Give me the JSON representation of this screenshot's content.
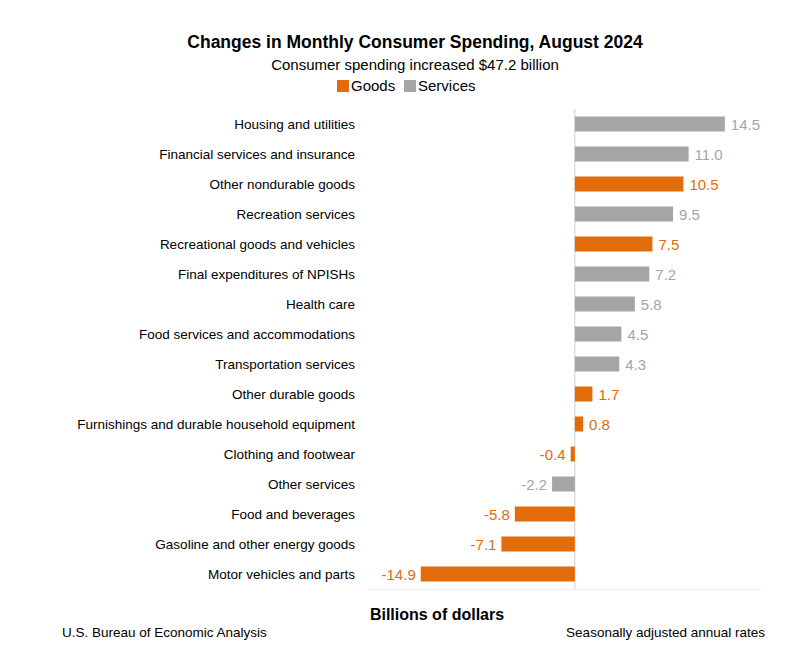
{
  "chart_data": {
    "type": "bar",
    "orientation": "horizontal",
    "title": "Changes in Monthly Consumer Spending, August 2024",
    "subtitle": "Consumer spending increased $47.2 billion",
    "x_label": "Billions of dollars",
    "annotations": [
      "U.S. Bureau of Economic Analysis",
      "Seasonally adjusted annual rates"
    ],
    "categories": [
      "Housing and utilities",
      "Financial services and insurance",
      "Other nondurable goods",
      "Recreation services",
      "Recreational goods and vehicles",
      "Final expenditures of NPISHs",
      "Health care",
      "Food services and accommodations",
      "Transportation services",
      "Other durable goods",
      "Furnishings and durable household equipment",
      "Clothing and footwear",
      "Other services",
      "Food and beverages",
      "Gasoline and other energy goods",
      "Motor vehicles and parts"
    ],
    "series": [
      {
        "name": "Goods",
        "color": "#e36c0a",
        "values": [
          null,
          null,
          10.5,
          null,
          7.5,
          null,
          null,
          null,
          null,
          1.7,
          0.8,
          -0.4,
          null,
          -5.8,
          -7.1,
          -14.9
        ],
        "value_labels": [
          null,
          null,
          "10.5",
          null,
          "7.5",
          null,
          null,
          null,
          null,
          "1.7",
          "0.8",
          "-0.4",
          null,
          "-5.8",
          "-7.1",
          "-14.9"
        ]
      },
      {
        "name": "Services",
        "color": "#a5a5a5",
        "values": [
          14.5,
          11.0,
          null,
          9.5,
          null,
          7.2,
          5.8,
          4.5,
          4.3,
          null,
          null,
          null,
          -2.2,
          null,
          null,
          null
        ],
        "value_labels": [
          "14.5",
          "11.0",
          null,
          "9.5",
          null,
          "7.2",
          "5.8",
          "4.5",
          "4.3",
          null,
          null,
          null,
          "-2.2",
          null,
          null,
          null
        ]
      }
    ],
    "xlim": [
      -20,
      18
    ],
    "xticks": [
      0
    ],
    "tick_labels": false,
    "grid": true,
    "data_labels": true,
    "legend": "top"
  }
}
